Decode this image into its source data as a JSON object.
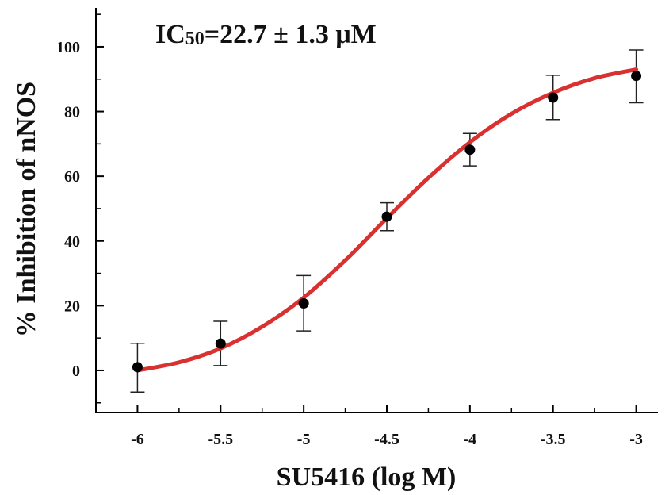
{
  "chart_data": {
    "type": "scatter",
    "title": "",
    "annotation": {
      "prefix": "IC",
      "subscript": "50",
      "value": "=22.7 ± 1.3 μM"
    },
    "xlabel": "SU5416 (log M)",
    "ylabel": "% Inhibition of nNOS",
    "xlim": [
      -6.25,
      -2.75
    ],
    "ylim": [
      -13,
      112
    ],
    "xticks": [
      -6,
      -5.5,
      -5,
      -4.5,
      -4,
      -3.5,
      -3
    ],
    "xtick_labels": [
      "-6",
      "-5.5",
      "-5",
      "-4.5",
      "-4",
      "-3.5",
      "-3"
    ],
    "yticks": [
      0,
      20,
      40,
      60,
      80,
      100
    ],
    "ytick_labels": [
      "0",
      "20",
      "40",
      "60",
      "80",
      "100"
    ],
    "grid": false,
    "series": [
      {
        "x": [
          -6,
          -5.5,
          -5,
          -4.5,
          -4,
          -3.5,
          -3
        ],
        "y": [
          1,
          8.3,
          20.7,
          47.5,
          68.2,
          84.3,
          91
        ],
        "err_upper": [
          8.4,
          15.2,
          29.3,
          51.8,
          73.2,
          91.2,
          99
        ],
        "err_lower": [
          -6.7,
          1.5,
          12.2,
          43.2,
          63.2,
          77.5,
          82.7
        ],
        "color": "#000000"
      }
    ],
    "fit": {
      "model": "sigmoidal",
      "color": "#d93030",
      "x": [
        -6,
        -5.75,
        -5.5,
        -5.25,
        -5,
        -4.75,
        -4.5,
        -4.25,
        -4,
        -3.75,
        -3.5,
        -3.25,
        -3
      ],
      "y": [
        0,
        2.5,
        6.8,
        13.5,
        22.5,
        34,
        47,
        59.5,
        70.5,
        79.3,
        85.8,
        90.3,
        93
      ]
    }
  }
}
